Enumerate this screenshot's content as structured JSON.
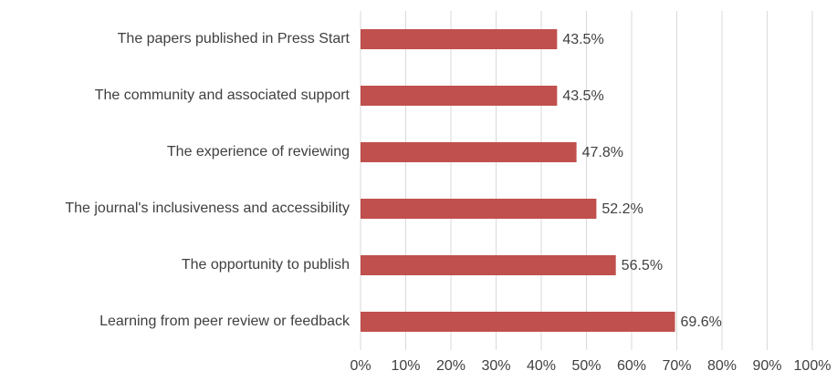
{
  "chart_data": {
    "type": "hbar",
    "categories": [
      "The papers published in Press Start",
      "The community and associated support",
      "The experience of reviewing",
      "The journal's inclusiveness and accessibility",
      "The opportunity to publish",
      "Learning from peer review or feedback"
    ],
    "values": [
      43.5,
      43.5,
      47.8,
      52.2,
      56.5,
      69.6
    ],
    "value_labels": [
      "43.5%",
      "43.5%",
      "47.8%",
      "52.2%",
      "56.5%",
      "69.6%"
    ],
    "color": "#c0504d",
    "xlim": [
      0,
      100
    ],
    "xticks": [
      {
        "value": 0,
        "label": "0%"
      },
      {
        "value": 10,
        "label": "10%"
      },
      {
        "value": 20,
        "label": "20%"
      },
      {
        "value": 30,
        "label": "30%"
      },
      {
        "value": 40,
        "label": "40%"
      },
      {
        "value": 50,
        "label": "50%"
      },
      {
        "value": 60,
        "label": "60%"
      },
      {
        "value": 70,
        "label": "70%"
      },
      {
        "value": 80,
        "label": "80%"
      },
      {
        "value": 90,
        "label": "90%"
      },
      {
        "value": 100,
        "label": "100%"
      }
    ],
    "grid": true
  }
}
